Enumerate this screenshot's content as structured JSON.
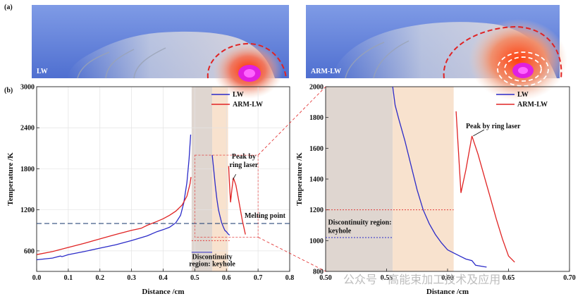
{
  "figure": {
    "panel_a_label": "(a)",
    "panel_b_label": "(b)",
    "sim_left_label": "LW",
    "sim_right_label": "ARM-LW",
    "watermark": "公众号 · 高能束加工技术及应用"
  },
  "colors": {
    "lw": "#2b2bc8",
    "arm_lw": "#e02323",
    "melting": "#2c4a7a",
    "region_gray": "#d9cfc8",
    "region_orange": "#f7ddc6",
    "sim_bg": "#6f8fe0"
  },
  "chart_data": [
    {
      "type": "line",
      "xlabel": "Distance /cm",
      "ylabel": "Temperature /K",
      "xlim": [
        0.0,
        0.8
      ],
      "ylim": [
        300,
        3000
      ],
      "xticks": [
        "0.0",
        "0.1",
        "0.2",
        "0.3",
        "0.4",
        "0.5",
        "0.6",
        "0.7",
        "0.8"
      ],
      "yticks": [
        "600",
        "1200",
        "1800",
        "2400",
        "3000"
      ],
      "grid": true,
      "legend": "top-right",
      "regions": [
        {
          "x0": 0.49,
          "x1": 0.555,
          "color_key": "region_gray"
        },
        {
          "x0": 0.555,
          "x1": 0.605,
          "color_key": "region_orange"
        }
      ],
      "hline": {
        "y": 1000,
        "label": "Melting point"
      },
      "annotations": [
        {
          "text": "Discontinuity region: keyhole",
          "lines": [
            "Discontinuity",
            "region: keyhole"
          ]
        },
        {
          "text": "Peak by ring laser",
          "lines": [
            "Peak by",
            "ring laser"
          ]
        }
      ],
      "series": [
        {
          "name": "LW",
          "color_key": "lw",
          "segments": [
            [
              [
                0.0,
                470
              ],
              [
                0.05,
                495
              ],
              [
                0.075,
                525
              ],
              [
                0.08,
                515
              ],
              [
                0.1,
                545
              ],
              [
                0.15,
                590
              ],
              [
                0.2,
                640
              ],
              [
                0.25,
                690
              ],
              [
                0.3,
                750
              ],
              [
                0.35,
                820
              ],
              [
                0.38,
                880
              ],
              [
                0.4,
                910
              ],
              [
                0.42,
                945
              ],
              [
                0.44,
                1010
              ],
              [
                0.455,
                1120
              ],
              [
                0.465,
                1300
              ],
              [
                0.475,
                1600
              ],
              [
                0.482,
                1950
              ],
              [
                0.487,
                2300
              ]
            ],
            [
              [
                0.555,
                2000
              ],
              [
                0.56,
                1780
              ],
              [
                0.565,
                1550
              ],
              [
                0.57,
                1350
              ],
              [
                0.575,
                1200
              ],
              [
                0.58,
                1100
              ],
              [
                0.585,
                1010
              ],
              [
                0.59,
                950
              ],
              [
                0.595,
                900
              ],
              [
                0.6,
                880
              ],
              [
                0.605,
                850
              ],
              [
                0.61,
                830
              ]
            ]
          ]
        },
        {
          "name": "ARM-LW",
          "color_key": "arm_lw",
          "segments": [
            [
              [
                0.0,
                545
              ],
              [
                0.05,
                590
              ],
              [
                0.1,
                650
              ],
              [
                0.15,
                710
              ],
              [
                0.2,
                775
              ],
              [
                0.25,
                840
              ],
              [
                0.3,
                900
              ],
              [
                0.33,
                930
              ],
              [
                0.35,
                975
              ],
              [
                0.38,
                1030
              ],
              [
                0.4,
                1070
              ],
              [
                0.42,
                1120
              ],
              [
                0.44,
                1180
              ],
              [
                0.46,
                1270
              ],
              [
                0.475,
                1400
              ],
              [
                0.485,
                1580
              ],
              [
                0.488,
                1680
              ]
            ],
            [
              [
                0.607,
                1840
              ],
              [
                0.61,
                1560
              ],
              [
                0.613,
                1310
              ],
              [
                0.617,
                1490
              ],
              [
                0.622,
                1670
              ],
              [
                0.63,
                1560
              ],
              [
                0.64,
                1310
              ],
              [
                0.65,
                1050
              ],
              [
                0.66,
                840
              ]
            ]
          ]
        }
      ]
    },
    {
      "type": "line",
      "xlabel": "Distance /cm",
      "ylabel": "Temperature /K",
      "xlim": [
        0.5,
        0.7
      ],
      "ylim": [
        800,
        2000
      ],
      "xticks": [
        "0.50",
        "0.55",
        "0.60",
        "0.65",
        "0.70"
      ],
      "yticks": [
        "800",
        "1000",
        "1200",
        "1400",
        "1600",
        "1800",
        "2000"
      ],
      "grid": false,
      "legend": "top-right",
      "regions": [
        {
          "x0": 0.5,
          "x1": 0.555,
          "color_key": "region_gray"
        },
        {
          "x0": 0.555,
          "x1": 0.605,
          "color_key": "region_orange"
        }
      ],
      "annotations": [
        {
          "text": "Discontinuity region: keyhole",
          "lines": [
            "Discontinuity region:",
            "keyhole"
          ]
        },
        {
          "text": "Peak by ring laser",
          "lines": [
            "Peak by ring laser"
          ]
        }
      ],
      "series": [
        {
          "name": "LW",
          "color_key": "lw",
          "segments": [
            [
              [
                0.555,
                2000
              ],
              [
                0.557,
                1880
              ],
              [
                0.56,
                1790
              ],
              [
                0.565,
                1650
              ],
              [
                0.57,
                1490
              ],
              [
                0.575,
                1330
              ],
              [
                0.58,
                1200
              ],
              [
                0.585,
                1110
              ],
              [
                0.59,
                1040
              ],
              [
                0.595,
                985
              ],
              [
                0.6,
                940
              ],
              [
                0.605,
                920
              ],
              [
                0.61,
                900
              ],
              [
                0.615,
                880
              ],
              [
                0.62,
                870
              ],
              [
                0.623,
                840
              ],
              [
                0.63,
                830
              ],
              [
                0.632,
                828
              ]
            ]
          ]
        },
        {
          "name": "ARM-LW",
          "color_key": "arm_lw",
          "segments": [
            [
              [
                0.607,
                1840
              ],
              [
                0.609,
                1570
              ],
              [
                0.611,
                1310
              ],
              [
                0.615,
                1460
              ],
              [
                0.62,
                1680
              ],
              [
                0.625,
                1560
              ],
              [
                0.63,
                1420
              ],
              [
                0.635,
                1280
              ],
              [
                0.64,
                1140
              ],
              [
                0.645,
                1010
              ],
              [
                0.65,
                900
              ],
              [
                0.655,
                860
              ]
            ]
          ]
        }
      ]
    }
  ]
}
